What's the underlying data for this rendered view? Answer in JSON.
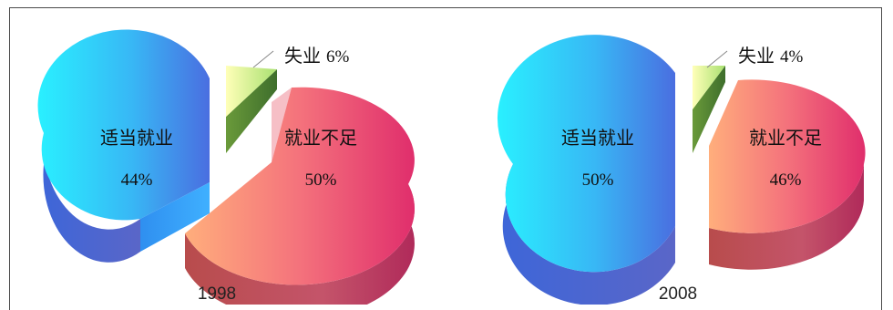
{
  "chart_data": [
    {
      "type": "pie",
      "subtitle": "1998",
      "slices": [
        {
          "label": "适当就业",
          "value": 44,
          "value_label": "44%",
          "color": "#3aa6f0"
        },
        {
          "label": "就业不足",
          "value": 50,
          "value_label": "50%",
          "color": "#f07080"
        },
        {
          "label": "失业",
          "value": 6,
          "value_label": "6%",
          "color": "#c8f07a"
        }
      ]
    },
    {
      "type": "pie",
      "subtitle": "2008",
      "slices": [
        {
          "label": "适当就业",
          "value": 50,
          "value_label": "50%",
          "color": "#3aa6f0"
        },
        {
          "label": "就业不足",
          "value": 46,
          "value_label": "46%",
          "color": "#f07080"
        },
        {
          "label": "失业",
          "value": 4,
          "value_label": "4%",
          "color": "#c8f07a"
        }
      ]
    }
  ]
}
